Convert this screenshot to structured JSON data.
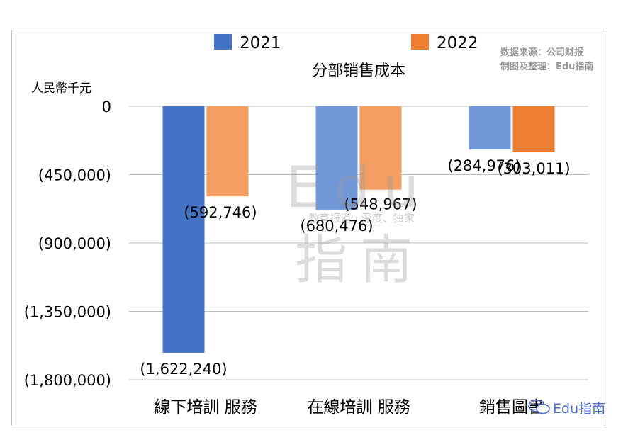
{
  "source_note": {
    "line1": "数据来源：公司财报",
    "line2": "制图及整理：Edu指南"
  },
  "watermark": {
    "big_top": "Edu",
    "tagline": "教育报道 · 深度、独家",
    "big_bottom": "指南",
    "corner_text": "Edu指南"
  },
  "chart_data": {
    "type": "bar",
    "title": "分部销售成本",
    "ylabel": "人民幣千元",
    "xlabel": "",
    "categories": [
      "線下培訓 服務",
      "在線培訓 服務",
      "銷售圖書"
    ],
    "series": [
      {
        "name": "2021",
        "values": [
          -1622240,
          -680476,
          -284976
        ],
        "labels": [
          "(1,622,240)",
          "(680,476)",
          "(284,976)"
        ],
        "colors": [
          "#4472c4",
          "#7197d6",
          "#7197d6"
        ]
      },
      {
        "name": "2022",
        "values": [
          -592746,
          -548967,
          -303011
        ],
        "labels": [
          "(592,746)",
          "(548,967)",
          "(303,011)"
        ],
        "colors": [
          "#f29e63",
          "#f29e63",
          "#ed7d31"
        ]
      }
    ],
    "yticks": [
      0,
      -450000,
      -900000,
      -1350000,
      -1800000
    ],
    "ytick_labels": [
      "0",
      "(450,000)",
      "(900,000)",
      "(1,350,000)",
      "(1,800,000)"
    ],
    "ylim": [
      -1800000,
      0
    ],
    "grid": true,
    "legend_position": "top",
    "legend_colors": [
      "#4472c4",
      "#ed7d31"
    ]
  }
}
